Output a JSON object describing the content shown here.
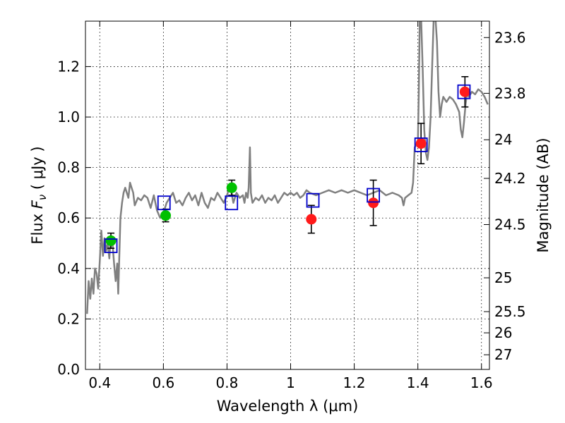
{
  "chart_data": {
    "type": "scatter",
    "xlabel": "Wavelength  λ (μm)",
    "ylabel": "Flux  F_ν  ( μJy )",
    "ylabel_parts": {
      "prefix": "Flux  ",
      "symbol": "F",
      "subscript": "ν",
      "suffix": "  ( μJy )"
    },
    "y2label": "Magnitude (AB)",
    "xlim": [
      0.355,
      1.625
    ],
    "ylim": [
      0.0,
      1.38
    ],
    "grid": true,
    "x_ticks": [
      {
        "value": 0.4,
        "label": "0.4"
      },
      {
        "value": 0.6,
        "label": "0.6"
      },
      {
        "value": 0.8,
        "label": "0.8"
      },
      {
        "value": 1.0,
        "label": "1"
      },
      {
        "value": 1.2,
        "label": "1.2"
      },
      {
        "value": 1.4,
        "label": "1.4"
      },
      {
        "value": 1.6,
        "label": "1.6"
      }
    ],
    "y_ticks": [
      {
        "value": 0.0,
        "label": "0.0"
      },
      {
        "value": 0.2,
        "label": "0.2"
      },
      {
        "value": 0.4,
        "label": "0.4"
      },
      {
        "value": 0.6,
        "label": "0.6"
      },
      {
        "value": 0.8,
        "label": "0.8"
      },
      {
        "value": 1.0,
        "label": "1.0"
      },
      {
        "value": 1.2,
        "label": "1.2"
      }
    ],
    "y2_ticks": [
      {
        "label": "23.6",
        "flux": 1.315
      },
      {
        "label": "23.8",
        "flux": 1.094
      },
      {
        "label": "24",
        "flux": 0.91
      },
      {
        "label": "24.2",
        "flux": 0.757
      },
      {
        "label": "24.5",
        "flux": 0.574
      },
      {
        "label": "25",
        "flux": 0.363
      },
      {
        "label": "25.5",
        "flux": 0.229
      },
      {
        "label": "26",
        "flux": 0.145
      },
      {
        "label": "27",
        "flux": 0.058
      }
    ],
    "series": [
      {
        "name": "model_spectrum",
        "kind": "line",
        "color": "#808080",
        "points": [
          [
            0.36,
            0.22
          ],
          [
            0.365,
            0.35
          ],
          [
            0.37,
            0.28
          ],
          [
            0.375,
            0.36
          ],
          [
            0.38,
            0.3
          ],
          [
            0.385,
            0.4
          ],
          [
            0.39,
            0.38
          ],
          [
            0.395,
            0.32
          ],
          [
            0.4,
            0.43
          ],
          [
            0.405,
            0.55
          ],
          [
            0.41,
            0.45
          ],
          [
            0.415,
            0.52
          ],
          [
            0.42,
            0.47
          ],
          [
            0.425,
            0.5
          ],
          [
            0.43,
            0.44
          ],
          [
            0.435,
            0.53
          ],
          [
            0.44,
            0.5
          ],
          [
            0.445,
            0.42
          ],
          [
            0.45,
            0.35
          ],
          [
            0.455,
            0.42
          ],
          [
            0.458,
            0.3
          ],
          [
            0.465,
            0.6
          ],
          [
            0.47,
            0.66
          ],
          [
            0.475,
            0.7
          ],
          [
            0.48,
            0.72
          ],
          [
            0.49,
            0.68
          ],
          [
            0.495,
            0.74
          ],
          [
            0.5,
            0.72
          ],
          [
            0.505,
            0.7
          ],
          [
            0.51,
            0.65
          ],
          [
            0.52,
            0.68
          ],
          [
            0.53,
            0.67
          ],
          [
            0.54,
            0.69
          ],
          [
            0.55,
            0.68
          ],
          [
            0.56,
            0.64
          ],
          [
            0.57,
            0.69
          ],
          [
            0.58,
            0.63
          ],
          [
            0.59,
            0.6
          ],
          [
            0.6,
            0.62
          ],
          [
            0.61,
            0.66
          ],
          [
            0.62,
            0.68
          ],
          [
            0.63,
            0.7
          ],
          [
            0.64,
            0.66
          ],
          [
            0.65,
            0.67
          ],
          [
            0.66,
            0.65
          ],
          [
            0.67,
            0.68
          ],
          [
            0.68,
            0.7
          ],
          [
            0.69,
            0.67
          ],
          [
            0.7,
            0.69
          ],
          [
            0.71,
            0.65
          ],
          [
            0.72,
            0.7
          ],
          [
            0.73,
            0.66
          ],
          [
            0.74,
            0.64
          ],
          [
            0.75,
            0.68
          ],
          [
            0.76,
            0.67
          ],
          [
            0.77,
            0.7
          ],
          [
            0.78,
            0.68
          ],
          [
            0.79,
            0.66
          ],
          [
            0.8,
            0.69
          ],
          [
            0.81,
            0.73
          ],
          [
            0.82,
            0.66
          ],
          [
            0.83,
            0.7
          ],
          [
            0.84,
            0.68
          ],
          [
            0.85,
            0.69
          ],
          [
            0.855,
            0.66
          ],
          [
            0.86,
            0.7
          ],
          [
            0.865,
            0.68
          ],
          [
            0.868,
            0.72
          ],
          [
            0.872,
            0.88
          ],
          [
            0.875,
            0.7
          ],
          [
            0.88,
            0.66
          ],
          [
            0.89,
            0.68
          ],
          [
            0.9,
            0.67
          ],
          [
            0.91,
            0.69
          ],
          [
            0.92,
            0.66
          ],
          [
            0.93,
            0.68
          ],
          [
            0.94,
            0.67
          ],
          [
            0.95,
            0.69
          ],
          [
            0.96,
            0.66
          ],
          [
            0.97,
            0.68
          ],
          [
            0.98,
            0.7
          ],
          [
            0.99,
            0.69
          ],
          [
            1.0,
            0.7
          ],
          [
            1.01,
            0.69
          ],
          [
            1.02,
            0.7
          ],
          [
            1.03,
            0.68
          ],
          [
            1.04,
            0.69
          ],
          [
            1.05,
            0.71
          ],
          [
            1.06,
            0.7
          ],
          [
            1.08,
            0.69
          ],
          [
            1.1,
            0.7
          ],
          [
            1.12,
            0.71
          ],
          [
            1.14,
            0.7
          ],
          [
            1.16,
            0.71
          ],
          [
            1.18,
            0.7
          ],
          [
            1.2,
            0.71
          ],
          [
            1.22,
            0.7
          ],
          [
            1.24,
            0.69
          ],
          [
            1.26,
            0.7
          ],
          [
            1.28,
            0.71
          ],
          [
            1.3,
            0.69
          ],
          [
            1.32,
            0.7
          ],
          [
            1.34,
            0.69
          ],
          [
            1.35,
            0.68
          ],
          [
            1.355,
            0.65
          ],
          [
            1.36,
            0.68
          ],
          [
            1.37,
            0.69
          ],
          [
            1.38,
            0.7
          ],
          [
            1.385,
            0.74
          ],
          [
            1.39,
            0.88
          ],
          [
            1.395,
            0.89
          ],
          [
            1.4,
            0.9
          ],
          [
            1.403,
            1.1
          ],
          [
            1.406,
            1.4
          ],
          [
            1.41,
            1.4
          ],
          [
            1.415,
            1.2
          ],
          [
            1.42,
            0.95
          ],
          [
            1.425,
            0.86
          ],
          [
            1.43,
            0.83
          ],
          [
            1.435,
            0.88
          ],
          [
            1.44,
            1.0
          ],
          [
            1.445,
            1.2
          ],
          [
            1.45,
            1.4
          ],
          [
            1.455,
            1.4
          ],
          [
            1.46,
            1.3
          ],
          [
            1.465,
            1.1
          ],
          [
            1.47,
            1.0
          ],
          [
            1.475,
            1.05
          ],
          [
            1.48,
            1.08
          ],
          [
            1.49,
            1.06
          ],
          [
            1.5,
            1.08
          ],
          [
            1.51,
            1.07
          ],
          [
            1.52,
            1.05
          ],
          [
            1.53,
            1.02
          ],
          [
            1.535,
            0.95
          ],
          [
            1.54,
            0.92
          ],
          [
            1.545,
            0.98
          ],
          [
            1.55,
            1.05
          ],
          [
            1.555,
            1.1
          ],
          [
            1.56,
            1.08
          ],
          [
            1.57,
            1.1
          ],
          [
            1.58,
            1.09
          ],
          [
            1.59,
            1.11
          ],
          [
            1.6,
            1.1
          ],
          [
            1.61,
            1.08
          ],
          [
            1.62,
            1.05
          ]
        ]
      },
      {
        "name": "model_bands",
        "kind": "open_square",
        "color": "#0000cc",
        "points": [
          [
            0.435,
            0.49
          ],
          [
            0.602,
            0.66
          ],
          [
            0.814,
            0.66
          ],
          [
            1.07,
            0.67
          ],
          [
            1.26,
            0.69
          ],
          [
            1.41,
            0.89
          ],
          [
            1.545,
            1.1
          ]
        ]
      },
      {
        "name": "observed_optical",
        "kind": "filled_circle",
        "color": "#00c000",
        "points": [
          {
            "x": 0.435,
            "y": 0.51,
            "yerr": 0.03
          },
          {
            "x": 0.607,
            "y": 0.61,
            "yerr": 0.025
          },
          {
            "x": 0.815,
            "y": 0.72,
            "yerr": 0.03
          }
        ]
      },
      {
        "name": "observed_nir",
        "kind": "filled_circle",
        "color": "#ff1a1a",
        "points": [
          {
            "x": 1.065,
            "y": 0.595,
            "yerr": 0.055
          },
          {
            "x": 1.26,
            "y": 0.66,
            "yerr": 0.09
          },
          {
            "x": 1.41,
            "y": 0.895,
            "yerr": 0.08
          },
          {
            "x": 1.548,
            "y": 1.1,
            "yerr": 0.06
          }
        ]
      }
    ]
  }
}
